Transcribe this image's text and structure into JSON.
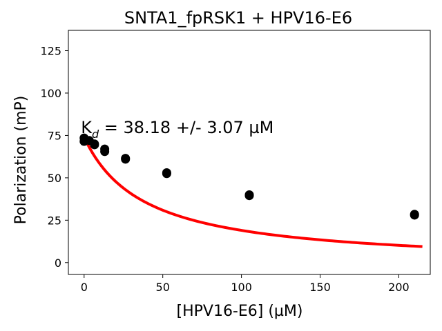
{
  "chart_data": {
    "type": "scatter",
    "title": "SNTA1_fpRSK1 + HPV16-E6",
    "xlabel": "[HPV16-E6] (µM)",
    "ylabel": "Polarization (mP)",
    "xlim": [
      -10,
      220
    ],
    "ylim": [
      -7,
      137
    ],
    "x_ticks": [
      0,
      50,
      100,
      150,
      200
    ],
    "y_ticks": [
      0,
      25,
      50,
      75,
      100,
      125
    ],
    "grid": false,
    "annotation": {
      "prefix": "K",
      "subscript": "d",
      "suffix": " = 38.18 +/- 3.07 µM",
      "at": [
        -2,
        80
      ]
    },
    "series": [
      {
        "kind": "points",
        "color": "#000000",
        "x": [
          0,
          0,
          3.3,
          6.6,
          6.6,
          13.1,
          13.1,
          26.3,
          26.3,
          52.5,
          52.5,
          105,
          105,
          210,
          210
        ],
        "y": [
          73.5,
          71.5,
          72,
          70,
          69.5,
          67,
          65.5,
          61.5,
          61,
          53,
          52.5,
          40,
          39.5,
          28.5,
          28
        ]
      },
      {
        "kind": "fit-curve",
        "color": "#ff0000",
        "model": "one-site binding",
        "params": {
          "y_free": 74,
          "y_bound": -2,
          "kd": 38.18
        },
        "x_range": [
          0,
          215
        ]
      }
    ]
  }
}
